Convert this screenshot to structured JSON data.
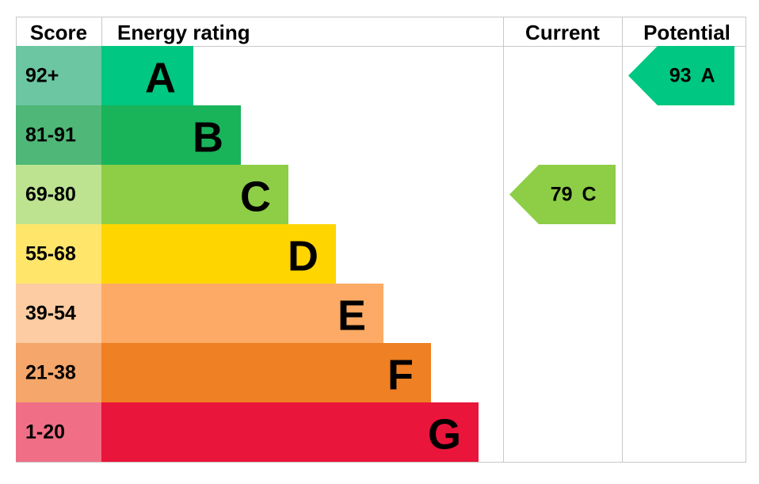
{
  "header": {
    "score": "Score",
    "energy_rating": "Energy rating",
    "current": "Current",
    "potential": "Potential"
  },
  "rows": [
    {
      "score": "92+",
      "letter": "A",
      "color": "#00c781",
      "score_color": "#6cc6a2"
    },
    {
      "score": "81-91",
      "letter": "B",
      "color": "#19b459",
      "score_color": "#4fb777"
    },
    {
      "score": "69-80",
      "letter": "C",
      "color": "#8dce46",
      "score_color": "#bde390"
    },
    {
      "score": "55-68",
      "letter": "D",
      "color": "#ffd500",
      "score_color": "#ffe66b"
    },
    {
      "score": "39-54",
      "letter": "E",
      "color": "#fcaa65",
      "score_color": "#fdcca2"
    },
    {
      "score": "21-38",
      "letter": "F",
      "color": "#ef8023",
      "score_color": "#f5a66a"
    },
    {
      "score": "1-20",
      "letter": "G",
      "color": "#e9153b",
      "score_color": "#f06f86"
    }
  ],
  "current": {
    "value": 79,
    "letter": "C"
  },
  "potential": {
    "value": 93,
    "letter": "A"
  }
}
